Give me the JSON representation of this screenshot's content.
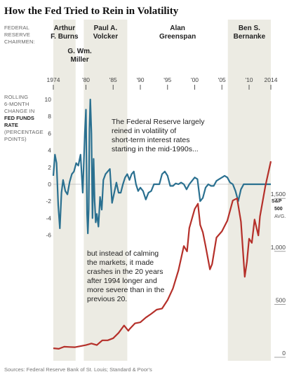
{
  "title": "How the Fed Tried to Rein in Volatility",
  "chairmen_label": [
    "FEDERAL",
    "RESERVE",
    "CHAIRMEN:"
  ],
  "chairmen": [
    {
      "name": [
        "Arthur",
        "F. Burns"
      ],
      "start": 1974.0,
      "end": 1978.1,
      "shaded": true
    },
    {
      "name": [
        "G. Wm.",
        "Miller"
      ],
      "start": 1978.1,
      "end": 1979.6,
      "shaded": false
    },
    {
      "name": [
        "Paul A.",
        "Volcker"
      ],
      "start": 1979.6,
      "end": 1987.6,
      "shaded": true
    },
    {
      "name": [
        "Alan",
        "Greenspan"
      ],
      "start": 1987.6,
      "end": 2006.1,
      "shaded": false
    },
    {
      "name": [
        "Ben S.",
        "Bernanke"
      ],
      "start": 2006.1,
      "end": 2014.0,
      "shaded": true
    }
  ],
  "year_ticks": [
    "1974",
    "'80",
    "'85",
    "'90",
    "'95",
    "'00",
    "'05",
    "'10",
    "2014"
  ],
  "fed_label": [
    {
      "text": "ROLLING",
      "bold": false
    },
    {
      "text": "6-MONTH",
      "bold": false
    },
    {
      "text": "CHANGE IN",
      "bold": false
    },
    {
      "text": "FED FUNDS",
      "bold": true
    },
    {
      "text": "RATE",
      "bold": true
    },
    {
      "text": "(PERCENTAGE",
      "bold": false
    },
    {
      "text": "POINTS)",
      "bold": false
    }
  ],
  "sp_label": [
    "S&P",
    "500"
  ],
  "sp_avg": "AVG.",
  "annotation_top": [
    "The Federal Reserve largely",
    "reined in volatility of",
    "short-term interest rates",
    "starting in the mid-1990s..."
  ],
  "annotation_bottom": [
    "but instead of calming",
    "the markets, it made",
    "crashes in the 20 years",
    "after 1994 longer and",
    "more severe than in the",
    "previous 20."
  ],
  "source": "Sources: Federal Reserve Bank of St. Louis; Standard & Poor's",
  "colors": {
    "fed_line": "#2a7090",
    "sp_line": "#b5302a",
    "shade": "#ecebe3"
  },
  "chart_data": [
    {
      "type": "line",
      "name": "Rolling 6-month change in Fed funds rate",
      "xlim": [
        1974,
        2014
      ],
      "ylim": [
        -6,
        10
      ],
      "y_ticks": [
        10,
        8,
        6,
        4,
        2,
        0,
        -2,
        -4,
        -6
      ],
      "x": [
        1974.0,
        1974.3,
        1974.6,
        1974.9,
        1975.2,
        1975.5,
        1975.8,
        1976.2,
        1976.6,
        1977.0,
        1977.4,
        1977.8,
        1978.2,
        1978.6,
        1979.0,
        1979.4,
        1979.8,
        1980.0,
        1980.2,
        1980.35,
        1980.5,
        1980.65,
        1980.8,
        1981.0,
        1981.2,
        1981.4,
        1981.6,
        1981.8,
        1982.0,
        1982.3,
        1982.6,
        1982.9,
        1983.2,
        1983.6,
        1984.0,
        1984.4,
        1984.8,
        1985.2,
        1985.6,
        1986.0,
        1986.4,
        1986.8,
        1987.2,
        1987.6,
        1988.0,
        1988.4,
        1988.8,
        1989.2,
        1989.6,
        1990.0,
        1990.5,
        1991.0,
        1991.5,
        1992.0,
        1992.5,
        1993.0,
        1993.5,
        1994.0,
        1994.5,
        1995.0,
        1995.5,
        1996.0,
        1996.5,
        1997.0,
        1997.5,
        1998.0,
        1998.5,
        1999.0,
        1999.5,
        2000.0,
        2000.5,
        2001.0,
        2001.5,
        2002.0,
        2002.5,
        2003.0,
        2003.5,
        2004.0,
        2004.5,
        2005.0,
        2005.5,
        2006.0,
        2006.5,
        2007.0,
        2007.5,
        2008.0,
        2008.5,
        2009.0,
        2009.5,
        2010.0,
        2011.0,
        2012.0,
        2013.0,
        2014.0
      ],
      "y": [
        1.0,
        3.5,
        2.5,
        -2.5,
        -5.2,
        -1.0,
        0.5,
        -0.8,
        -1.2,
        0.3,
        1.2,
        1.5,
        2.5,
        2.2,
        3.5,
        -1.0,
        6.0,
        8.8,
        -3.5,
        -5.8,
        -3.0,
        6.5,
        10.0,
        6.0,
        -4.0,
        3.0,
        -2.0,
        -4.5,
        -3.5,
        -5.0,
        -1.5,
        -3.0,
        0.5,
        1.2,
        1.5,
        1.8,
        -2.2,
        -1.0,
        0.2,
        -1.0,
        -1.0,
        0.0,
        0.8,
        1.2,
        0.5,
        1.2,
        1.5,
        0.0,
        -0.8,
        -0.4,
        -0.8,
        -1.8,
        -1.0,
        -0.8,
        0.0,
        0.0,
        0.0,
        1.2,
        1.5,
        1.0,
        -0.2,
        -0.2,
        0.1,
        0.0,
        0.2,
        0.0,
        -0.6,
        0.0,
        0.4,
        0.8,
        0.6,
        -2.0,
        -1.6,
        -0.4,
        0.0,
        -0.2,
        -0.2,
        0.4,
        0.6,
        0.8,
        1.0,
        0.8,
        0.2,
        0.0,
        -0.8,
        -2.0,
        -0.6,
        0.0,
        0.0,
        0.0,
        0.0,
        0.0,
        0.0,
        0.0
      ]
    },
    {
      "type": "line",
      "name": "S&P 500 average",
      "xlim": [
        1974,
        2014
      ],
      "ylim": [
        0,
        1800
      ],
      "y_ticks": [
        0,
        500,
        1000,
        1500
      ],
      "y_tick_labels": [
        "0",
        "500",
        "1,000",
        "1,500"
      ],
      "x": [
        1974.0,
        1975.0,
        1976.0,
        1977.0,
        1978.0,
        1979.0,
        1980.0,
        1981.0,
        1982.0,
        1983.0,
        1984.0,
        1985.0,
        1986.0,
        1987.0,
        1987.8,
        1988.0,
        1989.0,
        1990.0,
        1991.0,
        1992.0,
        1993.0,
        1994.0,
        1995.0,
        1996.0,
        1997.0,
        1998.0,
        1998.6,
        1999.0,
        2000.0,
        2000.6,
        2001.0,
        2001.5,
        2002.0,
        2002.8,
        2003.2,
        2004.0,
        2005.0,
        2006.0,
        2007.0,
        2007.8,
        2008.5,
        2009.2,
        2009.6,
        2010.0,
        2010.5,
        2011.0,
        2011.7,
        2012.0,
        2013.0,
        2014.0
      ],
      "y": [
        85,
        80,
        100,
        97,
        95,
        105,
        115,
        130,
        115,
        160,
        160,
        180,
        230,
        300,
        250,
        265,
        320,
        330,
        375,
        410,
        450,
        460,
        540,
        650,
        820,
        1050,
        1000,
        1220,
        1400,
        1450,
        1250,
        1180,
        1050,
        830,
        880,
        1130,
        1190,
        1290,
        1480,
        1500,
        1280,
        760,
        900,
        1120,
        1080,
        1300,
        1150,
        1330,
        1620,
        1850
      ]
    }
  ]
}
